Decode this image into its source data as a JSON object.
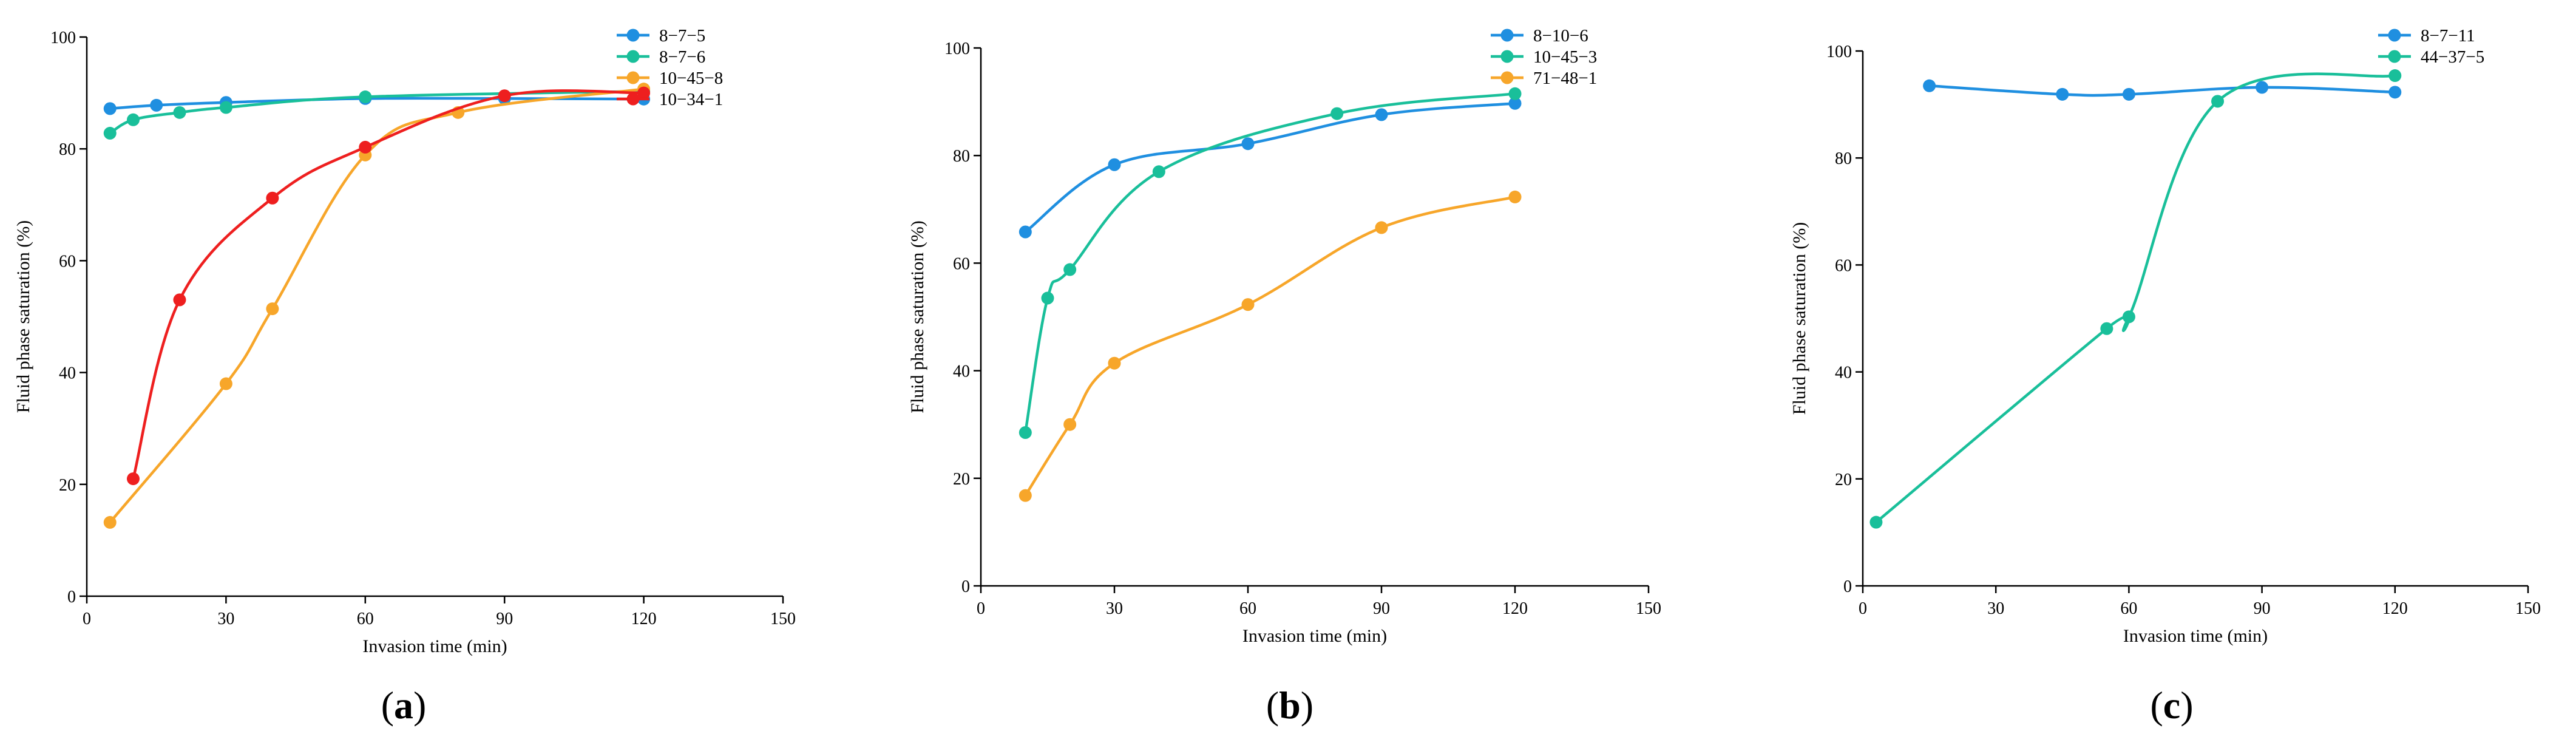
{
  "figure": {
    "panels": [
      "a",
      "b",
      "c"
    ]
  },
  "chart_data": [
    {
      "type": "line",
      "panel_label": "a",
      "title": "",
      "xlabel": "Invasion time (min)",
      "ylabel": "Fluid phase saturation (%)",
      "xlim": [
        0,
        150
      ],
      "ylim": [
        0,
        100
      ],
      "xticks": [
        0,
        30,
        60,
        90,
        120,
        150
      ],
      "yticks": [
        0,
        20,
        40,
        60,
        80,
        100
      ],
      "xtick_labels": [
        "0",
        "30",
        "60",
        "90",
        "120",
        "150"
      ],
      "ytick_labels": [
        "0",
        "20",
        "40",
        "60",
        "80",
        "100"
      ],
      "grid": false,
      "legend_position": "top-right",
      "series": [
        {
          "name": "8−7−5",
          "color": "#1f8fe0",
          "x": [
            5,
            15,
            30,
            60,
            90,
            120
          ],
          "y": [
            87.2,
            87.8,
            88.3,
            89.0,
            89.0,
            88.9
          ]
        },
        {
          "name": "8−7−6",
          "color": "#19bf9a",
          "x": [
            5,
            10,
            20,
            30,
            60,
            120
          ],
          "y": [
            82.8,
            85.2,
            86.5,
            87.4,
            89.3,
            90.3
          ]
        },
        {
          "name": "10−45−8",
          "color": "#f7a62a",
          "x": [
            5,
            30,
            40,
            60,
            80,
            120
          ],
          "y": [
            13.2,
            38.0,
            51.4,
            78.9,
            86.5,
            90.7
          ]
        },
        {
          "name": "10−34−1",
          "color": "#ee1f1f",
          "x": [
            10,
            20,
            40,
            60,
            90,
            120
          ],
          "y": [
            21.0,
            53.0,
            71.2,
            80.3,
            89.5,
            90.0
          ]
        }
      ]
    },
    {
      "type": "line",
      "panel_label": "b",
      "title": "",
      "xlabel": "Invasion time (min)",
      "ylabel": "Fluid phase saturation (%)",
      "xlim": [
        0,
        150
      ],
      "ylim": [
        0,
        100
      ],
      "xticks": [
        0,
        30,
        60,
        90,
        120,
        150
      ],
      "yticks": [
        0,
        20,
        40,
        60,
        80,
        100
      ],
      "xtick_labels": [
        "0",
        "30",
        "60",
        "90",
        "120",
        "150"
      ],
      "ytick_labels": [
        "0",
        "20",
        "40",
        "60",
        "80",
        "100"
      ],
      "grid": false,
      "legend_position": "top-right",
      "series": [
        {
          "name": "8−10−6",
          "color": "#1f8fe0",
          "x": [
            10,
            30,
            60,
            90,
            120
          ],
          "y": [
            65.8,
            78.3,
            82.2,
            87.6,
            89.7
          ]
        },
        {
          "name": "10−45−3",
          "color": "#19bf9a",
          "x": [
            10,
            15,
            20,
            40,
            80,
            120
          ],
          "y": [
            28.5,
            53.5,
            58.8,
            77.0,
            87.8,
            91.5
          ]
        },
        {
          "name": "71−48−1",
          "color": "#f7a62a",
          "x": [
            10,
            20,
            30,
            60,
            90,
            120
          ],
          "y": [
            16.8,
            30.0,
            41.4,
            52.3,
            66.6,
            72.3
          ]
        }
      ]
    },
    {
      "type": "line",
      "panel_label": "c",
      "title": "",
      "xlabel": "Invasion time (min)",
      "ylabel": "Fluid phase saturation (%)",
      "xlim": [
        0,
        150
      ],
      "ylim": [
        0,
        100
      ],
      "xticks": [
        0,
        30,
        60,
        90,
        120,
        150
      ],
      "yticks": [
        0,
        20,
        40,
        60,
        80,
        100
      ],
      "xtick_labels": [
        "0",
        "30",
        "60",
        "90",
        "120",
        "150"
      ],
      "ytick_labels": [
        "0",
        "20",
        "40",
        "60",
        "80",
        "100"
      ],
      "grid": false,
      "legend_position": "top-right",
      "series": [
        {
          "name": "8−7−11",
          "color": "#1f8fe0",
          "x": [
            15,
            45,
            60,
            90,
            120
          ],
          "y": [
            93.5,
            91.9,
            91.9,
            93.2,
            92.3
          ]
        },
        {
          "name": "44−37−5",
          "color": "#19bf9a",
          "x": [
            3,
            55,
            60,
            80,
            120
          ],
          "y": [
            11.9,
            48.1,
            50.3,
            90.6,
            95.4
          ]
        }
      ]
    }
  ]
}
